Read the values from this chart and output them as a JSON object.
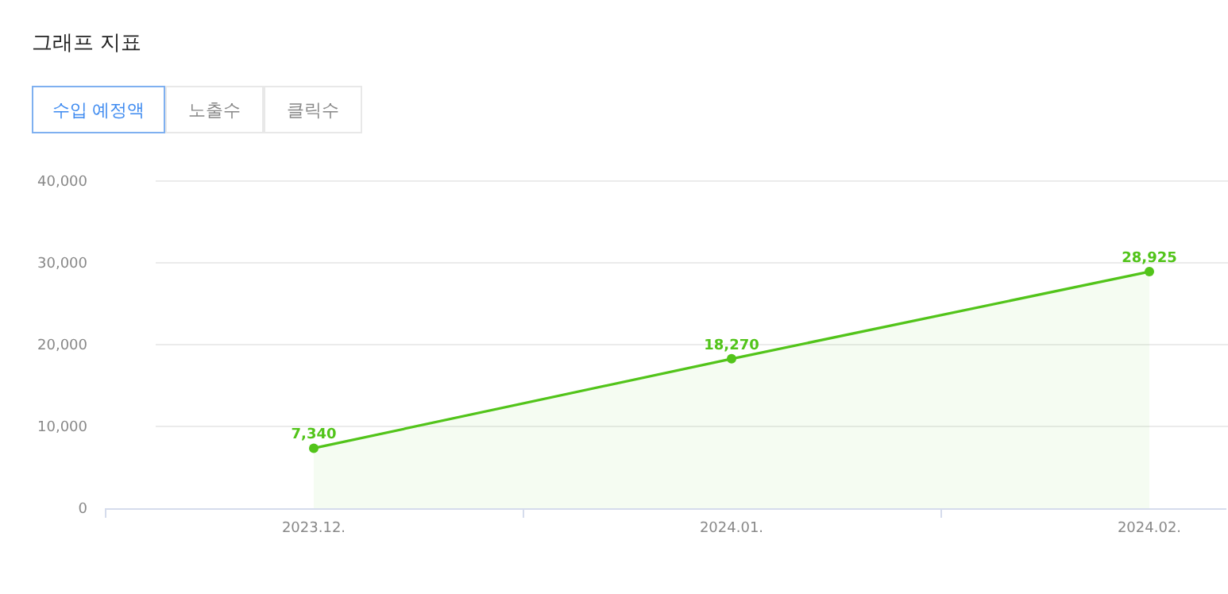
{
  "chart_data": {
    "type": "area",
    "title": "그래프 지표",
    "annotations": [
      "수입 예정액",
      "노출수",
      "클릭수"
    ],
    "categories": [
      "2023.12.",
      "2024.01.",
      "2024.02."
    ],
    "series": [
      {
        "color": "#52c41a",
        "values": [
          7340,
          18270,
          28925
        ],
        "value_labels": [
          "7,340",
          "18,270",
          "28,925"
        ]
      }
    ],
    "ylim": [
      0,
      40000
    ],
    "yticks": [
      {
        "value": 0,
        "label": "0"
      },
      {
        "value": 10000,
        "label": "10,000"
      },
      {
        "value": 20000,
        "label": "20,000"
      },
      {
        "value": 30000,
        "label": "30,000"
      },
      {
        "value": 40000,
        "label": "40,000"
      }
    ],
    "grid": "y",
    "marker": "circle",
    "line_style": "solid"
  }
}
